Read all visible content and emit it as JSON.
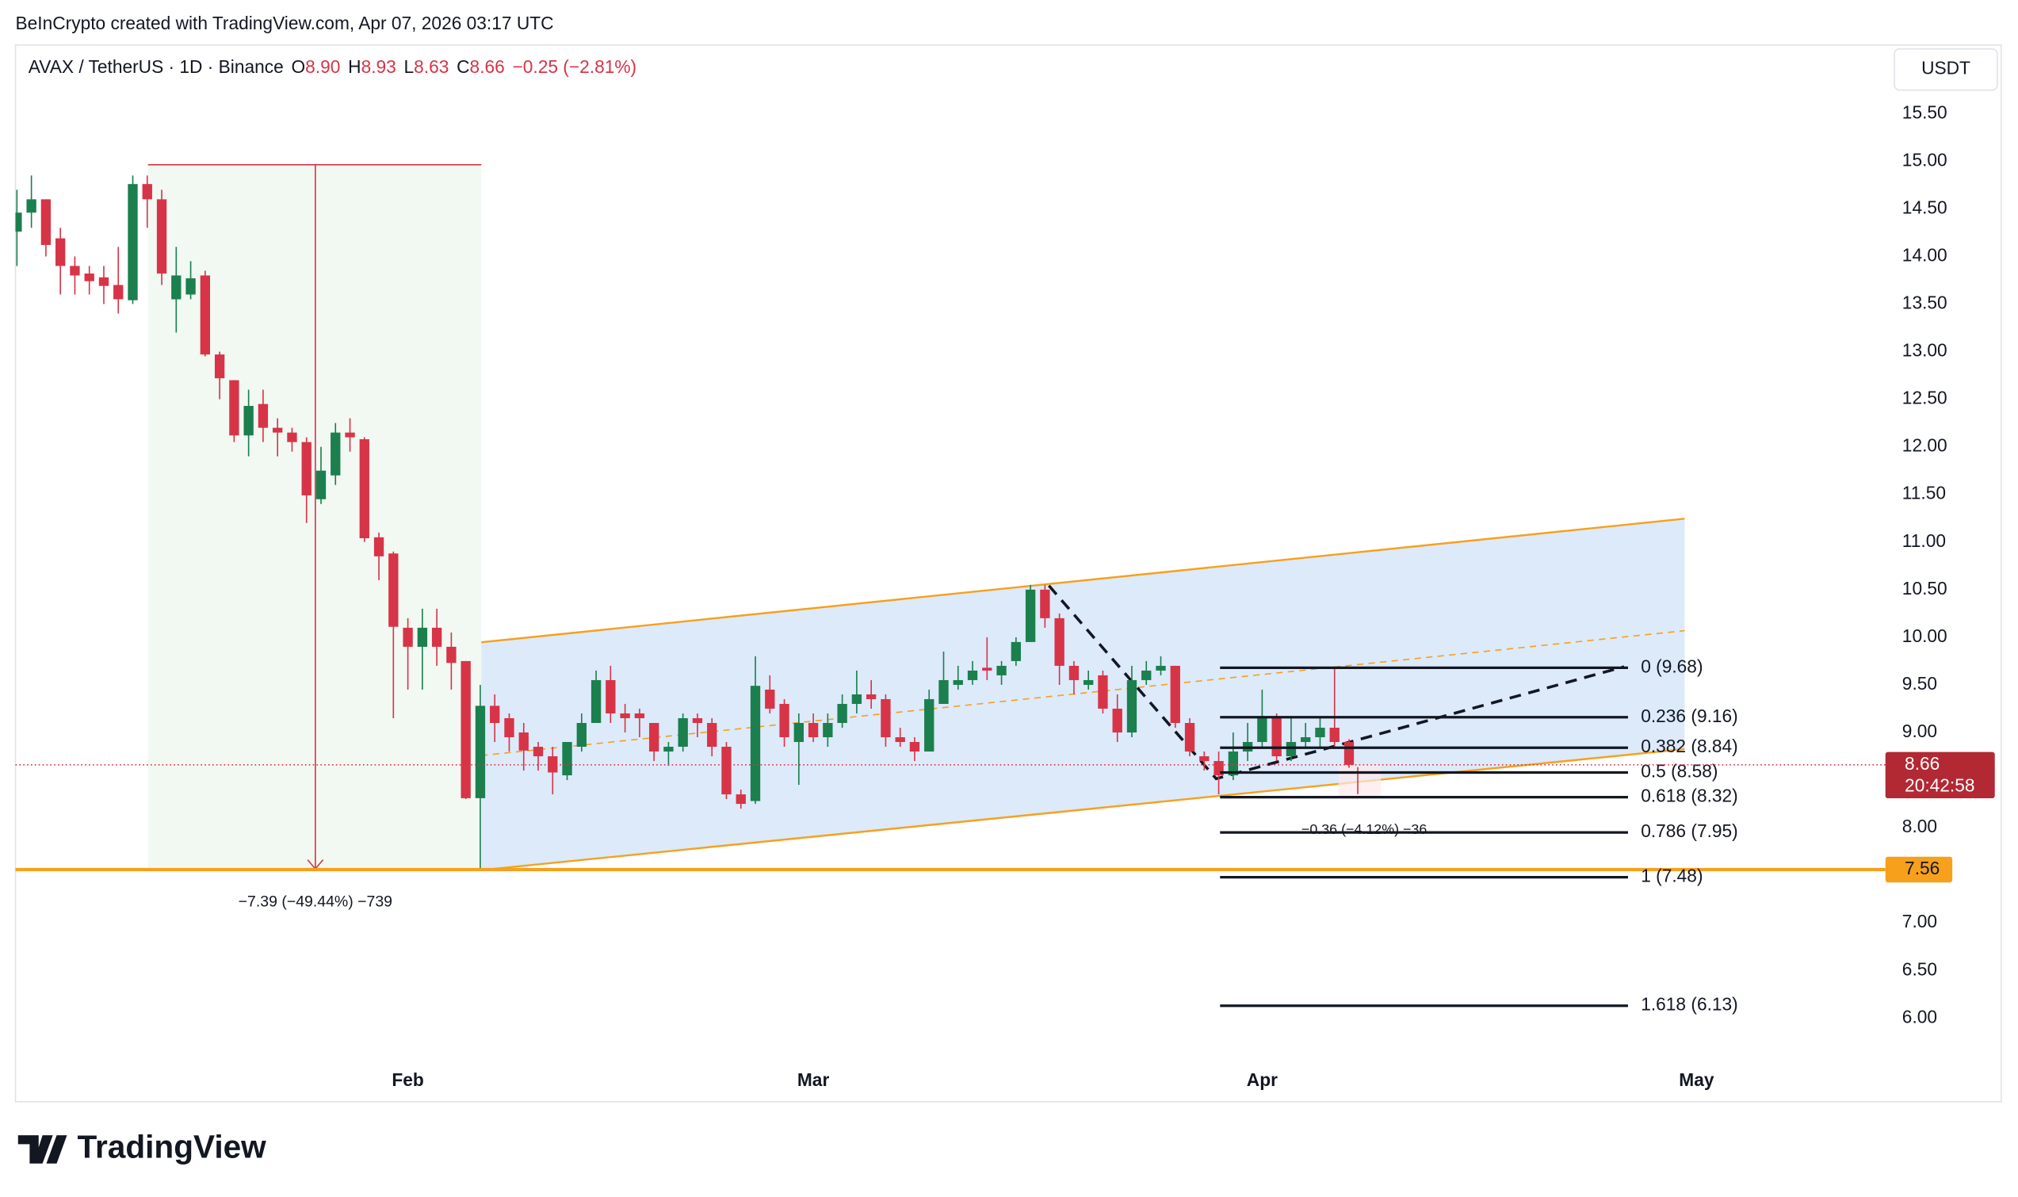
{
  "header": "BeInCrypto created with TradingView.com, Apr 07, 2026 03:17 UTC",
  "brand": "TradingView",
  "chart_data": {
    "type": "candlestick",
    "symbol": "AVAX / TetherUS · 1D · Binance",
    "legend": [
      {
        "key": "O",
        "value": "8.90"
      },
      {
        "key": "H",
        "value": "8.93"
      },
      {
        "key": "L",
        "value": "8.63"
      },
      {
        "key": "C",
        "value": "8.66"
      }
    ],
    "change": "−0.25 (−2.81%)",
    "currency": "USDT",
    "up_color": "#1b7f4e",
    "down_color": "#d73447",
    "categories": [
      null,
      null,
      null,
      null,
      null,
      null,
      null,
      null,
      null,
      null,
      null,
      null,
      null,
      null,
      null,
      null,
      null,
      null,
      null,
      null,
      null,
      null,
      null,
      null,
      null,
      null,
      null,
      null,
      null,
      null,
      null,
      null,
      null,
      null,
      null,
      null,
      null,
      null,
      null,
      null,
      null,
      null,
      null,
      null,
      null,
      null,
      null,
      null,
      null,
      null,
      null,
      null,
      null,
      null,
      null,
      null,
      null,
      null,
      null,
      null,
      null,
      null,
      null,
      null,
      null,
      null,
      null,
      null,
      null,
      null,
      null,
      null,
      null,
      null,
      null,
      null,
      null,
      null,
      null,
      null,
      null,
      null,
      null,
      null,
      null,
      null,
      null,
      null,
      null,
      null,
      null,
      null,
      null
    ],
    "open": [
      14.26,
      14.46,
      14.6,
      14.19,
      13.9,
      13.82,
      13.78,
      13.7,
      13.54,
      14.76,
      14.6,
      13.55,
      13.6,
      13.8,
      12.97,
      12.7,
      12.12,
      12.45,
      12.2,
      12.15,
      12.05,
      11.45,
      11.7,
      12.15,
      12.08,
      11.05,
      10.88,
      10.1,
      9.9,
      10.1,
      9.9,
      9.75,
      8.31,
      9.28,
      9.15,
      9.0,
      8.85,
      8.75,
      8.55,
      8.85,
      9.1,
      9.55,
      9.2,
      9.2,
      9.1,
      8.8,
      8.85,
      9.15,
      9.1,
      8.85,
      8.35,
      8.28,
      9.45,
      9.3,
      8.9,
      9.1,
      8.95,
      9.1,
      9.3,
      9.4,
      9.35,
      8.95,
      8.9,
      8.8,
      9.3,
      9.5,
      9.55,
      9.68,
      9.6,
      9.75,
      9.95,
      10.5,
      10.2,
      9.7,
      9.5,
      9.6,
      9.25,
      9.0,
      9.55,
      9.65,
      9.7,
      9.1,
      8.75,
      8.7,
      8.55,
      8.8,
      8.9,
      9.15,
      8.75,
      8.9,
      8.95,
      9.05,
      8.9
    ],
    "high": [
      14.7,
      14.85,
      14.6,
      14.3,
      14.0,
      13.9,
      13.9,
      14.1,
      14.85,
      14.85,
      14.7,
      14.1,
      13.95,
      13.85,
      13.0,
      12.7,
      12.6,
      12.6,
      12.3,
      12.2,
      12.1,
      12.0,
      12.25,
      12.3,
      12.1,
      11.1,
      10.9,
      10.2,
      10.3,
      10.3,
      10.05,
      9.75,
      9.5,
      9.4,
      9.2,
      9.1,
      8.9,
      8.85,
      8.9,
      9.2,
      9.65,
      9.7,
      9.3,
      9.25,
      9.1,
      8.9,
      9.2,
      9.2,
      9.15,
      8.9,
      8.4,
      9.8,
      9.6,
      9.35,
      9.2,
      9.2,
      9.2,
      9.4,
      9.65,
      9.55,
      9.4,
      9.05,
      8.95,
      9.45,
      9.85,
      9.7,
      9.75,
      10.0,
      9.75,
      10.0,
      10.55,
      10.55,
      10.25,
      9.75,
      9.65,
      9.65,
      9.4,
      9.7,
      9.75,
      9.8,
      9.7,
      9.15,
      8.8,
      8.8,
      9.0,
      9.1,
      9.45,
      9.2,
      9.15,
      9.1,
      9.15,
      9.68,
      8.93
    ],
    "low": [
      13.9,
      14.3,
      14.0,
      13.6,
      13.6,
      13.6,
      13.5,
      13.4,
      13.5,
      14.3,
      13.7,
      13.2,
      13.55,
      12.95,
      12.5,
      12.05,
      11.9,
      12.05,
      11.9,
      11.95,
      11.2,
      11.4,
      11.6,
      11.95,
      11.0,
      10.6,
      9.15,
      9.45,
      9.45,
      9.7,
      9.45,
      8.3,
      7.56,
      8.9,
      8.8,
      8.6,
      8.6,
      8.35,
      8.5,
      8.8,
      9.1,
      9.1,
      9.0,
      8.95,
      8.7,
      8.65,
      8.8,
      8.95,
      8.75,
      8.3,
      8.2,
      8.25,
      9.2,
      8.85,
      8.45,
      8.9,
      8.85,
      9.05,
      9.2,
      9.25,
      8.85,
      8.85,
      8.7,
      8.8,
      9.3,
      9.45,
      9.5,
      9.55,
      9.5,
      9.7,
      9.95,
      10.1,
      9.5,
      9.4,
      9.45,
      9.2,
      8.9,
      8.95,
      9.5,
      9.6,
      9.05,
      8.75,
      8.6,
      8.35,
      8.5,
      8.7,
      8.85,
      8.7,
      8.7,
      8.85,
      8.85,
      8.85,
      8.63
    ],
    "close": [
      14.46,
      14.6,
      14.12,
      13.9,
      13.8,
      13.74,
      13.69,
      13.55,
      14.76,
      14.6,
      13.82,
      13.8,
      13.77,
      12.97,
      12.72,
      12.12,
      12.43,
      12.2,
      12.15,
      12.05,
      11.49,
      11.75,
      12.15,
      12.1,
      11.04,
      10.85,
      10.11,
      9.9,
      10.1,
      9.9,
      9.73,
      8.31,
      9.28,
      9.1,
      8.95,
      8.81,
      8.75,
      8.58,
      8.9,
      9.1,
      9.55,
      9.2,
      9.15,
      9.15,
      8.8,
      8.85,
      9.15,
      9.1,
      8.85,
      8.35,
      8.25,
      9.49,
      9.25,
      8.95,
      9.1,
      8.95,
      9.1,
      9.3,
      9.4,
      9.35,
      8.95,
      8.9,
      8.8,
      9.35,
      9.55,
      9.55,
      9.65,
      9.65,
      9.7,
      9.95,
      10.5,
      10.2,
      9.7,
      9.55,
      9.55,
      9.25,
      9.0,
      9.55,
      9.65,
      9.7,
      9.1,
      8.8,
      8.7,
      8.55,
      8.8,
      8.9,
      9.15,
      8.75,
      8.9,
      8.95,
      9.05,
      8.9,
      8.66
    ],
    "xlim": [
      -0.1,
      128.6
    ],
    "xticks": [
      {
        "value": 27,
        "label": "Feb"
      },
      {
        "value": 55,
        "label": "Mar"
      },
      {
        "value": 86,
        "label": "Apr"
      },
      {
        "value": 116,
        "label": "May"
      }
    ],
    "ylim": [
      5.135,
      16.22
    ],
    "yticks": [
      {
        "value": 6,
        "label": "6.00"
      },
      {
        "value": 6.5,
        "label": "6.50"
      },
      {
        "value": 7,
        "label": "7.00"
      },
      {
        "value": 7.5,
        "label": "7.50"
      },
      {
        "value": 8,
        "label": "8.00"
      },
      {
        "value": 8.5,
        "label": "8.50"
      },
      {
        "value": 9,
        "label": "9.00"
      },
      {
        "value": 9.5,
        "label": "9.50"
      },
      {
        "value": 10,
        "label": "10.00"
      },
      {
        "value": 10.5,
        "label": "10.50"
      },
      {
        "value": 11,
        "label": "11.00"
      },
      {
        "value": 11.5,
        "label": "11.50"
      },
      {
        "value": 12,
        "label": "12.00"
      },
      {
        "value": 12.5,
        "label": "12.50"
      },
      {
        "value": 13,
        "label": "13.00"
      },
      {
        "value": 13.5,
        "label": "13.50"
      },
      {
        "value": 14,
        "label": "14.00"
      },
      {
        "value": 14.5,
        "label": "14.50"
      },
      {
        "value": 15,
        "label": "15.00"
      },
      {
        "value": 15.5,
        "label": "15.50"
      }
    ],
    "last_price": {
      "value": 8.66,
      "label": "8.66",
      "countdown": "20:42:58"
    },
    "support": {
      "value": 7.56,
      "label": "7.56"
    },
    "fib_levels": [
      {
        "value": 9.68,
        "label": "0 (9.68)"
      },
      {
        "value": 9.16,
        "label": "0.236 (9.16)"
      },
      {
        "value": 8.84,
        "label": "0.382 (8.84)"
      },
      {
        "value": 8.58,
        "label": "0.5 (8.58)"
      },
      {
        "value": 8.32,
        "label": "0.618 (8.32)"
      },
      {
        "value": 7.95,
        "label": "0.786 (7.95)"
      },
      {
        "value": 7.48,
        "label": "1 (7.48)"
      },
      {
        "value": 6.13,
        "label": "1.618 (6.13)"
      }
    ],
    "annotations": [
      "−7.39 (−49.44%) −739",
      "−0.36 (−4.12%) −36"
    ]
  }
}
